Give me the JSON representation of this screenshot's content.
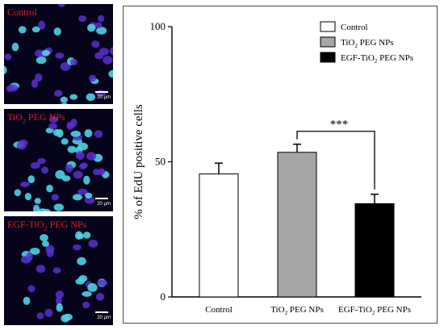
{
  "panels": [
    {
      "label": "Control",
      "label_sub": "",
      "label_after": "",
      "scale_label": "20 μm",
      "nuclei_color": "#4fd2e6"
    },
    {
      "label": "TiO",
      "label_sub": "2",
      "label_after": " PEG NPs",
      "scale_label": "20 μm",
      "nuclei_color": "#4fd2e6"
    },
    {
      "label": "EGF-TiO",
      "label_sub": "2",
      "label_after": " PEG NPs",
      "scale_label": "20 μm",
      "nuclei_color": "#4fd2e6"
    }
  ],
  "chart_data": {
    "type": "bar",
    "categories": [
      {
        "main": "Control",
        "sub": "",
        "after": ""
      },
      {
        "main": "TiO",
        "sub": "2",
        "after": " PEG NPs"
      },
      {
        "main": "EGF-TiO",
        "sub": "2",
        "after": " PEG NPs"
      }
    ],
    "values": [
      45.5,
      53.5,
      34.5
    ],
    "errors": [
      4.0,
      3.0,
      3.5
    ],
    "colors": [
      "#ffffff",
      "#a6a6a6",
      "#000000"
    ],
    "ylabel": "% of EdU positive cells",
    "ylim": [
      0,
      100
    ],
    "yticks": [
      0,
      50,
      100
    ],
    "legend": {
      "position": "top-right",
      "entries": [
        {
          "main": "Control",
          "sub": "",
          "after": ""
        },
        {
          "main": "TiO",
          "sub": "2",
          "after": " PEG NPs"
        },
        {
          "main": "EGF-TiO",
          "sub": "2",
          "after": " PEG NPs"
        }
      ]
    },
    "significance": {
      "between": [
        1,
        2
      ],
      "label": "***"
    }
  }
}
